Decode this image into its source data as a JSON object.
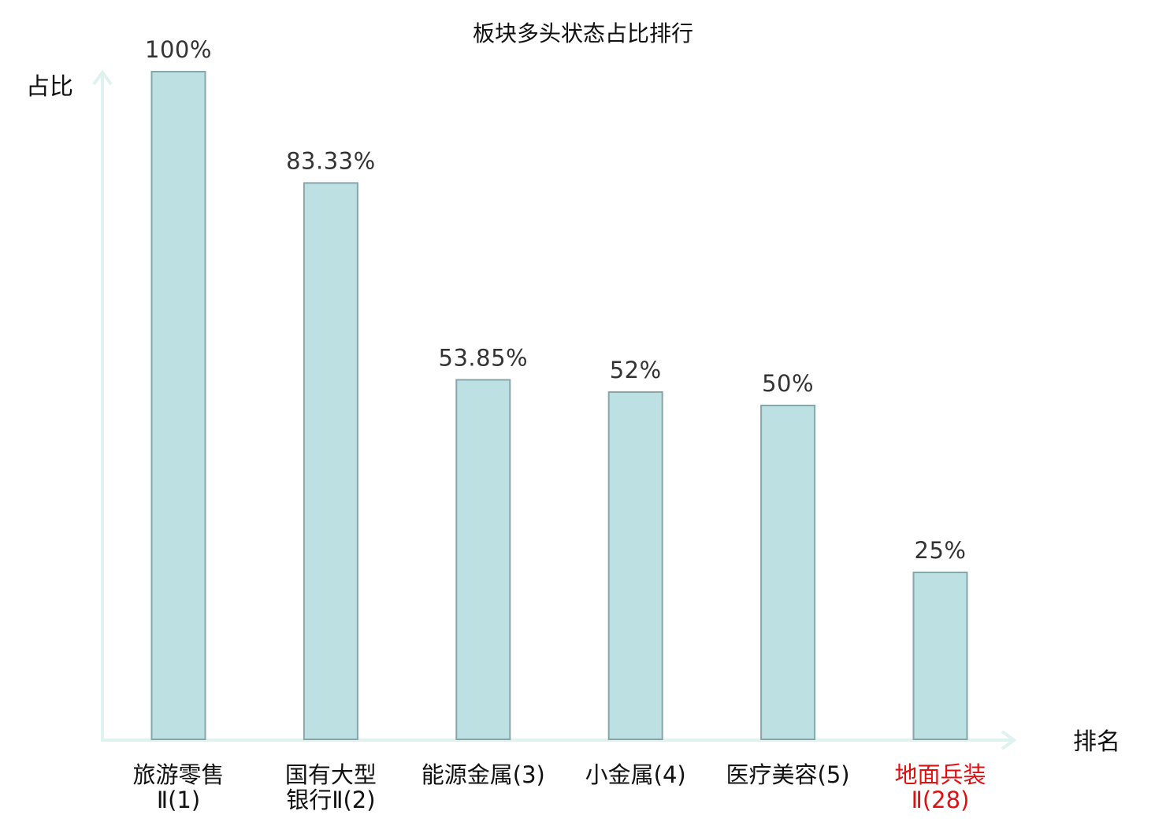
{
  "chart_data": {
    "type": "bar",
    "title": "板块多头状态占比排行",
    "ylabel": "占比",
    "xlabel": "排名",
    "ylim": [
      0,
      100
    ],
    "grid": false,
    "categories": [
      {
        "name": "旅游零售Ⅱ",
        "rank": "(1)",
        "value": 100,
        "label": "100%",
        "highlight": false,
        "lines": [
          "旅游零售",
          "Ⅱ(1)"
        ]
      },
      {
        "name": "国有大型银行Ⅱ",
        "rank": "(2)",
        "value": 83.33,
        "label": "83.33%",
        "highlight": false,
        "lines": [
          "国有大型",
          "银行Ⅱ(2)"
        ]
      },
      {
        "name": "能源金属",
        "rank": "(3)",
        "value": 53.85,
        "label": "53.85%",
        "highlight": false,
        "lines": [
          "能源金属(3)"
        ]
      },
      {
        "name": "小金属",
        "rank": "(4)",
        "value": 52,
        "label": "52%",
        "highlight": false,
        "lines": [
          "小金属(4)"
        ]
      },
      {
        "name": "医疗美容",
        "rank": "(5)",
        "value": 50,
        "label": "50%",
        "highlight": false,
        "lines": [
          "医疗美容(5)"
        ]
      },
      {
        "name": "地面兵装Ⅱ",
        "rank": "(28)",
        "value": 25,
        "label": "25%",
        "highlight": true,
        "lines": [
          "地面兵装",
          "Ⅱ(28)"
        ]
      }
    ],
    "colors": {
      "bar_fill": "#bde0e3",
      "bar_stroke": "#86a6aa",
      "axis": "#dff2ef",
      "text": "#111111",
      "value_text": "#333333",
      "highlight": "#e01010"
    }
  }
}
